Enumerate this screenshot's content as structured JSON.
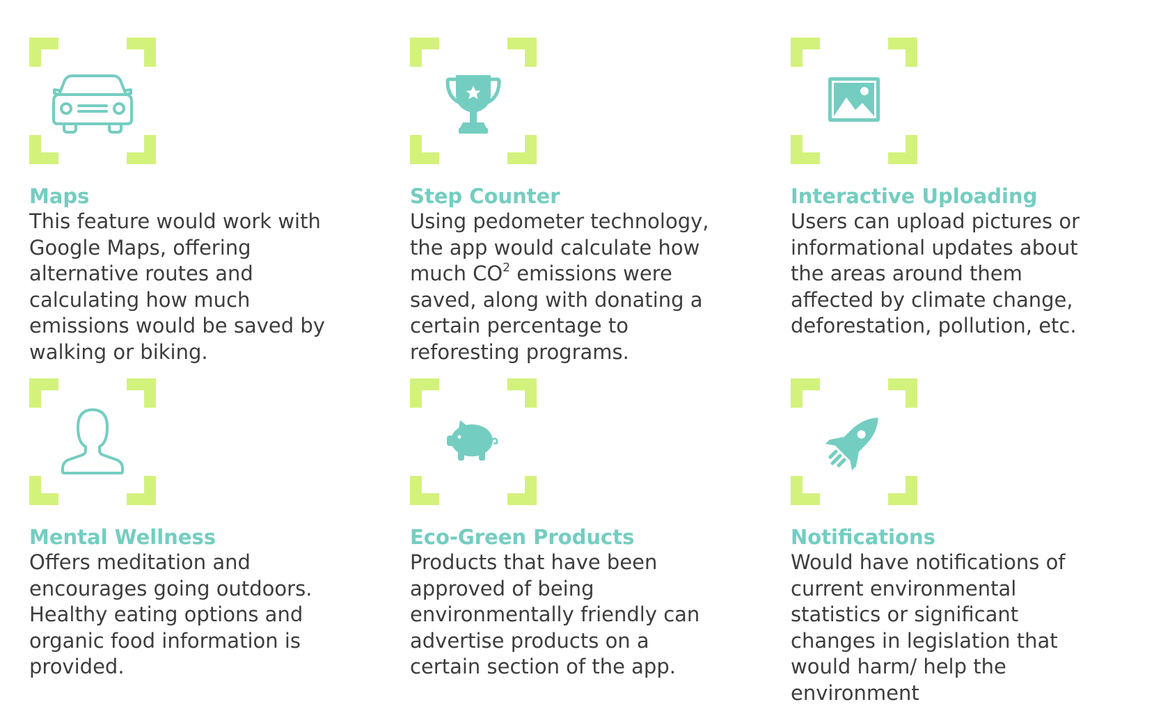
{
  "colors": {
    "accent": "#74cdc1",
    "corner": "#d3f27c",
    "text": "#3d3d3d"
  },
  "features": [
    {
      "icon": "car-icon",
      "title": "Maps",
      "lines": [
        "This feature would work with",
        "Google Maps, offering",
        "alternative routes and",
        "calculating how much",
        "emissions would be saved by",
        "walking or biking."
      ]
    },
    {
      "icon": "trophy-icon",
      "title": "Step Counter",
      "lines": [
        "Using pedometer technology,",
        "the app would calculate how"
      ],
      "line3_pre": "much CO",
      "line3_sup": "2",
      "line3_post": " emissions were",
      "lines_after": [
        "saved, along with donating a",
        "certain percentage to",
        "reforesting programs."
      ]
    },
    {
      "icon": "image-icon",
      "title": "Interactive Uploading",
      "lines": [
        "Users can upload pictures or",
        "informational updates about",
        "the areas around them",
        "affected by climate change,",
        "deforestation, pollution, etc."
      ]
    },
    {
      "icon": "person-icon",
      "title": "Mental Wellness",
      "lines": [
        "Offers meditation and",
        "encourages going outdoors.",
        "Healthy eating options and",
        "organic food information is",
        "provided."
      ]
    },
    {
      "icon": "piggy-bank-icon",
      "title": "Eco-Green Products",
      "lines": [
        "Products that have been",
        "approved of being",
        "environmentally friendly can",
        "advertise products on a",
        "certain section of the app."
      ]
    },
    {
      "icon": "rocket-icon",
      "title": "Notifications",
      "lines": [
        "Would have notifications of",
        "current environmental",
        "statistics or significant",
        "changes in legislation that",
        "would harm/ help the",
        "environment"
      ]
    }
  ]
}
